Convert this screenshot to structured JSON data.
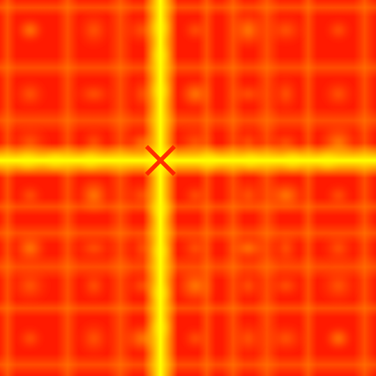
{
  "image": {
    "kind": "heatmap-texture",
    "colormap": [
      "#ff0000",
      "#ff6a00",
      "#ffd000",
      "#ffff00"
    ],
    "background_color": "#ff1a00",
    "bright_bands": [
      {
        "orientation": "vertical",
        "position": 0.43,
        "strength": 1.0
      },
      {
        "orientation": "horizontal",
        "position": 0.43,
        "strength": 1.0
      }
    ],
    "secondary_bands": [
      0.02,
      0.18,
      0.32,
      0.55,
      0.62,
      0.71,
      0.82,
      0.97
    ]
  }
}
